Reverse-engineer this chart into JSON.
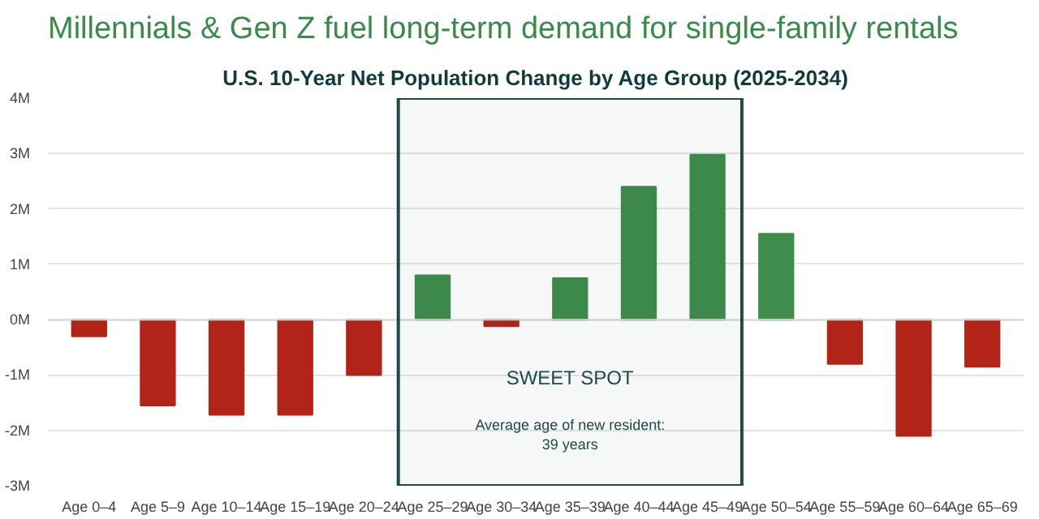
{
  "chart_data": {
    "type": "bar",
    "title": "Millennials & Gen Z fuel long-term demand for single-family rentals",
    "subtitle": "U.S. 10-Year Net Population Change by Age Group (2025-2034)",
    "categories": [
      "Age 0–4",
      "Age 5–9",
      "Age 10–14",
      "Age 15–19",
      "Age 20–24",
      "Age 25–29",
      "Age 30–34",
      "Age 35–39",
      "Age 40–44",
      "Age 45–49",
      "Age 50–54",
      "Age 55–59",
      "Age 60–64",
      "Age 65–69"
    ],
    "values": [
      -0.3,
      -1.55,
      -1.72,
      -1.72,
      -1.0,
      0.8,
      -0.12,
      0.75,
      2.4,
      2.98,
      1.55,
      -0.8,
      -2.1,
      -0.85
    ],
    "colors": [
      "#b22418",
      "#b22418",
      "#b22418",
      "#b22418",
      "#b22418",
      "#3f8c4c",
      "#b22418",
      "#3f8c4c",
      "#3f8c4c",
      "#3f8c4c",
      "#3f8c4c",
      "#b22418",
      "#b22418",
      "#b22418"
    ],
    "ylim": [
      -3,
      4
    ],
    "yticks": [
      {
        "value": -3,
        "label": "-3M"
      },
      {
        "value": -2,
        "label": "-2M"
      },
      {
        "value": -1,
        "label": "-1M"
      },
      {
        "value": 0,
        "label": "0M"
      },
      {
        "value": 1,
        "label": "1M"
      },
      {
        "value": 2,
        "label": "2M"
      },
      {
        "value": 3,
        "label": "3M"
      },
      {
        "value": 4,
        "label": "4M"
      }
    ],
    "bands": [
      {
        "axis": "x",
        "from": "Age 25–29",
        "to": "Age 45–49",
        "label": "SWEET SPOT",
        "color": "#1e4a4a"
      }
    ],
    "annotations": [
      "Average age of new resident:\n39 years"
    ],
    "grid": "y"
  }
}
